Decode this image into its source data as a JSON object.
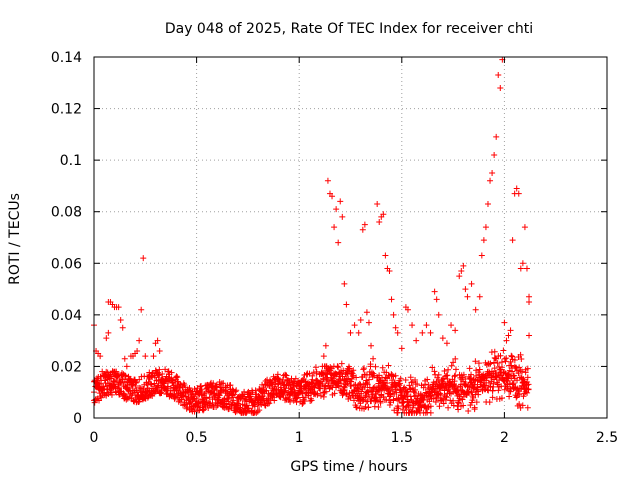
{
  "chart_data": {
    "type": "scatter",
    "title": "Day 048 of 2025, Rate Of TEC Index for receiver chti",
    "xlabel": "GPS time / hours",
    "ylabel": "ROTI / TECUs",
    "xlim": [
      0,
      2.5
    ],
    "ylim": [
      0,
      0.14
    ],
    "xticks": [
      0,
      0.5,
      1,
      1.5,
      2,
      2.5
    ],
    "xtick_labels": [
      "0",
      "0.5",
      "1",
      "1.5",
      "2",
      "2.5"
    ],
    "yticks": [
      0,
      0.02,
      0.04,
      0.06,
      0.08,
      0.1,
      0.12,
      0.14
    ],
    "ytick_labels": [
      "0",
      "0.02",
      "0.04",
      "0.06",
      "0.08",
      "0.1",
      "0.12",
      "0.14"
    ],
    "grid": true,
    "marker": "+",
    "color": "#ff0000",
    "series": [
      {
        "name": "ROTI",
        "points": [
          [
            0.0,
            0.036
          ],
          [
            0.01,
            0.026
          ],
          [
            0.02,
            0.025
          ],
          [
            0.03,
            0.024
          ],
          [
            0.04,
            0.018
          ],
          [
            0.05,
            0.017
          ],
          [
            0.06,
            0.031
          ],
          [
            0.07,
            0.033
          ],
          [
            0.07,
            0.045
          ],
          [
            0.08,
            0.045
          ],
          [
            0.09,
            0.044
          ],
          [
            0.1,
            0.043
          ],
          [
            0.11,
            0.043
          ],
          [
            0.12,
            0.043
          ],
          [
            0.13,
            0.038
          ],
          [
            0.14,
            0.035
          ],
          [
            0.15,
            0.023
          ],
          [
            0.16,
            0.02
          ],
          [
            0.18,
            0.024
          ],
          [
            0.19,
            0.024
          ],
          [
            0.2,
            0.025
          ],
          [
            0.21,
            0.026
          ],
          [
            0.22,
            0.03
          ],
          [
            0.23,
            0.042
          ],
          [
            0.24,
            0.062
          ],
          [
            0.25,
            0.024
          ],
          [
            0.27,
            0.01
          ],
          [
            0.29,
            0.024
          ],
          [
            0.3,
            0.029
          ],
          [
            0.31,
            0.03
          ],
          [
            0.32,
            0.026
          ],
          [
            1.12,
            0.024
          ],
          [
            1.13,
            0.028
          ],
          [
            1.14,
            0.092
          ],
          [
            1.15,
            0.087
          ],
          [
            1.16,
            0.086
          ],
          [
            1.17,
            0.074
          ],
          [
            1.18,
            0.081
          ],
          [
            1.19,
            0.068
          ],
          [
            1.2,
            0.084
          ],
          [
            1.21,
            0.078
          ],
          [
            1.22,
            0.052
          ],
          [
            1.23,
            0.044
          ],
          [
            1.25,
            0.033
          ],
          [
            1.27,
            0.036
          ],
          [
            1.29,
            0.033
          ],
          [
            1.3,
            0.038
          ],
          [
            1.31,
            0.073
          ],
          [
            1.32,
            0.075
          ],
          [
            1.33,
            0.041
          ],
          [
            1.34,
            0.037
          ],
          [
            1.35,
            0.028
          ],
          [
            1.36,
            0.023
          ],
          [
            1.38,
            0.083
          ],
          [
            1.39,
            0.076
          ],
          [
            1.4,
            0.078
          ],
          [
            1.41,
            0.079
          ],
          [
            1.42,
            0.063
          ],
          [
            1.43,
            0.058
          ],
          [
            1.44,
            0.057
          ],
          [
            1.45,
            0.046
          ],
          [
            1.46,
            0.04
          ],
          [
            1.47,
            0.035
          ],
          [
            1.48,
            0.033
          ],
          [
            1.5,
            0.027
          ],
          [
            1.52,
            0.043
          ],
          [
            1.53,
            0.042
          ],
          [
            1.55,
            0.036
          ],
          [
            1.57,
            0.03
          ],
          [
            1.6,
            0.033
          ],
          [
            1.62,
            0.036
          ],
          [
            1.64,
            0.033
          ],
          [
            1.66,
            0.049
          ],
          [
            1.67,
            0.046
          ],
          [
            1.68,
            0.04
          ],
          [
            1.7,
            0.031
          ],
          [
            1.72,
            0.029
          ],
          [
            1.74,
            0.036
          ],
          [
            1.76,
            0.034
          ],
          [
            1.78,
            0.055
          ],
          [
            1.79,
            0.057
          ],
          [
            1.8,
            0.059
          ],
          [
            1.81,
            0.05
          ],
          [
            1.82,
            0.047
          ],
          [
            1.84,
            0.052
          ],
          [
            1.86,
            0.042
          ],
          [
            1.88,
            0.047
          ],
          [
            1.89,
            0.063
          ],
          [
            1.9,
            0.069
          ],
          [
            1.91,
            0.074
          ],
          [
            1.92,
            0.083
          ],
          [
            1.93,
            0.092
          ],
          [
            1.94,
            0.095
          ],
          [
            1.95,
            0.102
          ],
          [
            1.96,
            0.109
          ],
          [
            1.97,
            0.133
          ],
          [
            1.98,
            0.128
          ],
          [
            1.99,
            0.139
          ],
          [
            2.0,
            0.037
          ],
          [
            2.01,
            0.03
          ],
          [
            2.02,
            0.032
          ],
          [
            2.03,
            0.034
          ],
          [
            2.04,
            0.069
          ],
          [
            2.05,
            0.087
          ],
          [
            2.06,
            0.089
          ],
          [
            2.07,
            0.087
          ],
          [
            2.08,
            0.058
          ],
          [
            2.09,
            0.06
          ],
          [
            2.1,
            0.074
          ],
          [
            2.11,
            0.058
          ],
          [
            2.12,
            0.045
          ],
          [
            2.12,
            0.047
          ],
          [
            2.12,
            0.032
          ]
        ]
      }
    ],
    "background_band": {
      "description": "dense low-level noise",
      "x_range": [
        0,
        2.12
      ],
      "y_range": [
        0.002,
        0.02
      ]
    }
  }
}
